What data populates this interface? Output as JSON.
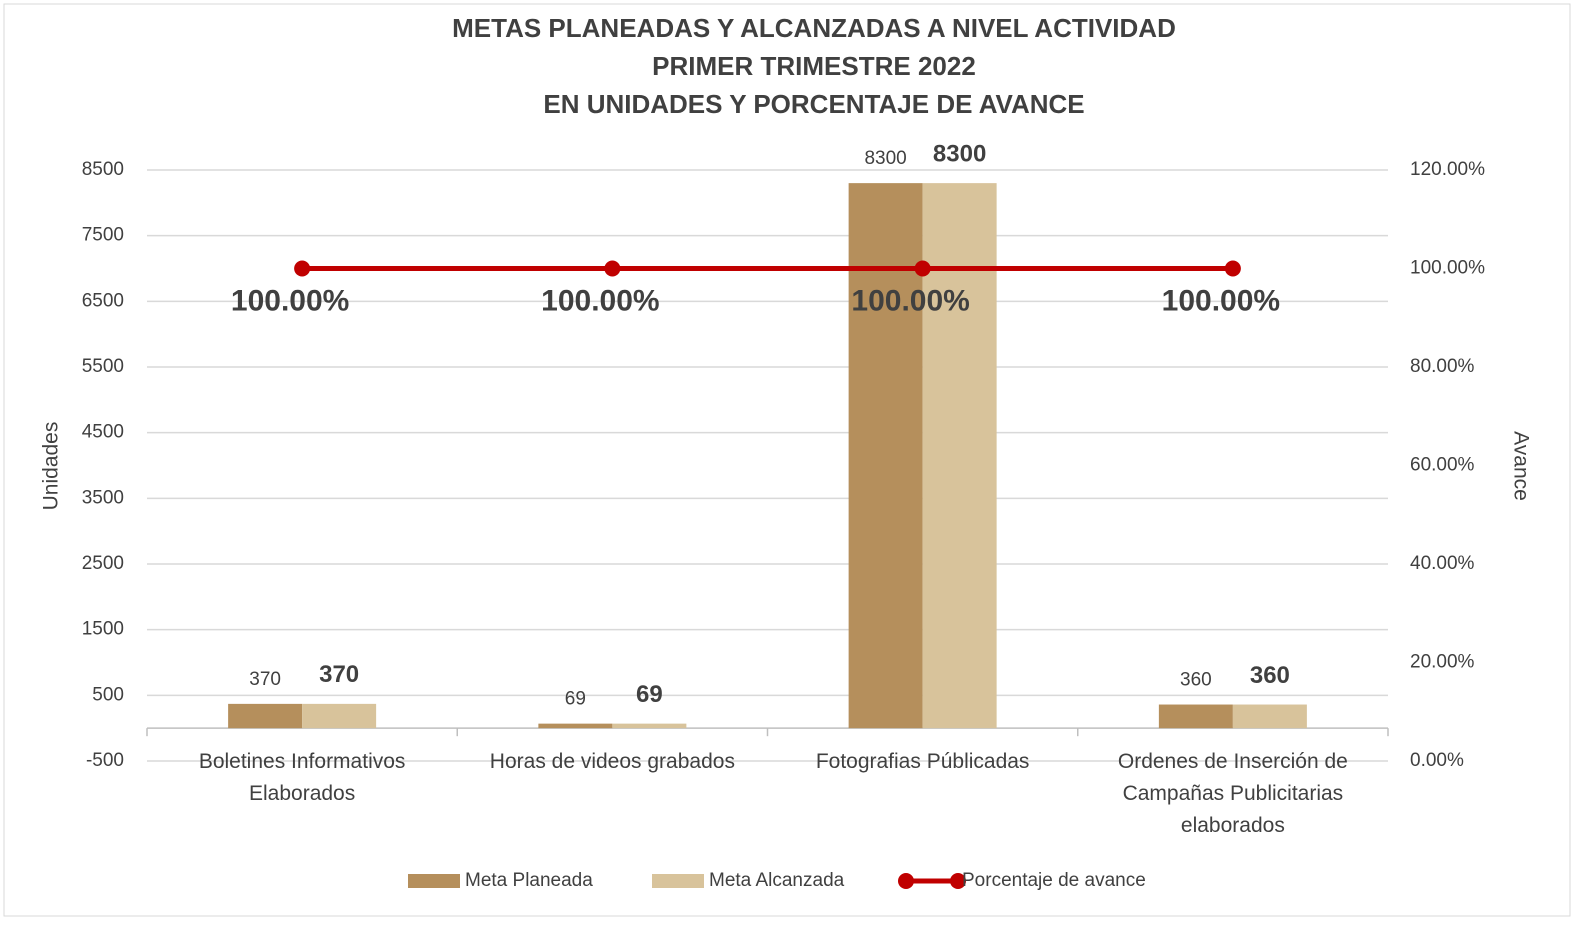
{
  "chart_data": {
    "type": "bar-line",
    "title": [
      "METAS PLANEADAS Y ALCANZADAS A NIVEL ACTIVIDAD",
      "PRIMER TRIMESTRE 2022",
      "EN UNIDADES Y PORCENTAJE DE AVANCE"
    ],
    "y_label": "Unidades",
    "y2_label": "Avance",
    "categories": [
      "Boletines Informativos Elaborados",
      "Horas de videos grabados",
      "Fotografias Públicadas",
      "Ordenes de Inserción de Campañas Publicitarias elaborados"
    ],
    "series": [
      {
        "name": "Meta Planeada",
        "type": "bar",
        "color": "#b58f5c",
        "values": [
          370,
          69,
          8300,
          360
        ]
      },
      {
        "name": "Meta Alcanzada",
        "type": "bar",
        "color": "#d8c39b",
        "values": [
          370,
          69,
          8300,
          360
        ]
      },
      {
        "name": "Porcentaje de avance",
        "type": "line",
        "axis": "y2",
        "color": "#c00000",
        "values": [
          100,
          100,
          100,
          100
        ],
        "value_labels": [
          "100.00%",
          "100.00%",
          "100.00%",
          "100.00%"
        ]
      }
    ],
    "ylim": [
      -500,
      8500
    ],
    "yticks": [
      -500,
      500,
      1500,
      2500,
      3500,
      4500,
      5500,
      6500,
      7500,
      8500
    ],
    "y2lim": [
      0,
      120
    ],
    "y2ticks": [
      {
        "value": 0,
        "label": "0.00%"
      },
      {
        "value": 20,
        "label": "20.00%"
      },
      {
        "value": 40,
        "label": "40.00%"
      },
      {
        "value": 60,
        "label": "60.00%"
      },
      {
        "value": 80,
        "label": "80.00%"
      },
      {
        "value": 100,
        "label": "100.00%"
      },
      {
        "value": 120,
        "label": "120.00%"
      }
    ],
    "grid": true,
    "legend": "bottom"
  }
}
